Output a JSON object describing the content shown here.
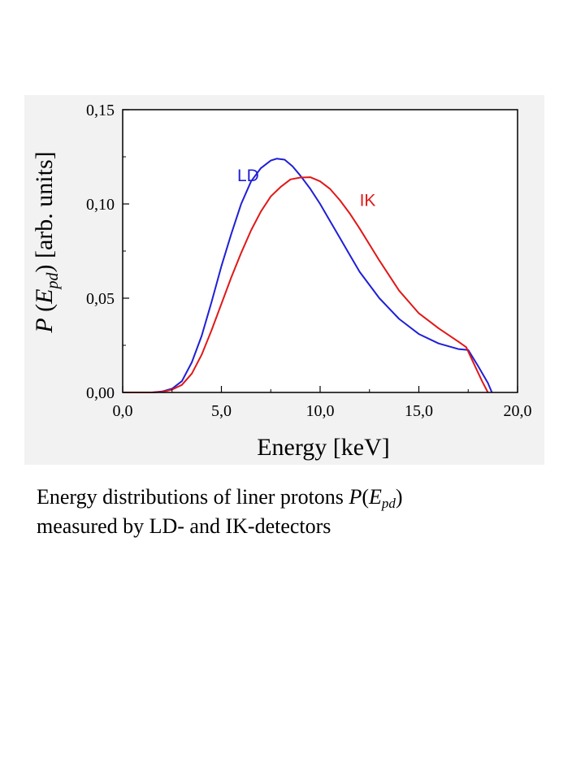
{
  "caption": {
    "line1_prefix": "Energy distributions of liner protons ",
    "symbol": "P",
    "paren_open": "(",
    "E": "E",
    "sub": "pd",
    "paren_close": ")",
    "line2": "measured by LD- and IK-detectors"
  },
  "chart_data": {
    "type": "line",
    "xlabel": "Energy [keV]",
    "ylabel": {
      "P": "P",
      "open": " (",
      "E": "E",
      "sub": "pd",
      "rest": ") [arb. units]"
    },
    "xlim": [
      0,
      20
    ],
    "ylim": [
      0,
      0.15
    ],
    "x_ticks": [
      {
        "value": 0,
        "label": "0,0"
      },
      {
        "value": 5,
        "label": "5,0"
      },
      {
        "value": 10,
        "label": "10,0"
      },
      {
        "value": 15,
        "label": "15,0"
      },
      {
        "value": 20,
        "label": "20,0"
      }
    ],
    "y_ticks": [
      {
        "value": 0,
        "label": "0,00"
      },
      {
        "value": 0.05,
        "label": "0,05"
      },
      {
        "value": 0.1,
        "label": "0,10"
      },
      {
        "value": 0.15,
        "label": "0,15"
      }
    ],
    "grid": false,
    "series": [
      {
        "name": "LD",
        "color": "#1f1fd6",
        "x": [
          0,
          1.5,
          2.0,
          2.5,
          3.0,
          3.5,
          4.0,
          4.5,
          5.0,
          5.5,
          6.0,
          6.5,
          7.0,
          7.5,
          7.8,
          8.2,
          8.6,
          9.0,
          9.5,
          10.0,
          10.5,
          11.0,
          11.5,
          12.0,
          13.0,
          14.0,
          15.0,
          16.0,
          17.0,
          17.5,
          18.0,
          18.5,
          18.7
        ],
        "y": [
          0,
          0,
          0.0005,
          0.002,
          0.006,
          0.016,
          0.03,
          0.048,
          0.067,
          0.084,
          0.1,
          0.112,
          0.119,
          0.123,
          0.124,
          0.1235,
          0.12,
          0.115,
          0.108,
          0.1,
          0.091,
          0.082,
          0.073,
          0.064,
          0.05,
          0.039,
          0.031,
          0.026,
          0.023,
          0.0225,
          0.014,
          0.005,
          0
        ]
      },
      {
        "name": "IK",
        "color": "#e01818",
        "x": [
          0,
          1.5,
          2.0,
          2.5,
          3.0,
          3.5,
          4.0,
          4.5,
          5.0,
          5.5,
          6.0,
          6.5,
          7.0,
          7.5,
          8.0,
          8.5,
          9.0,
          9.5,
          10.0,
          10.5,
          11.0,
          11.5,
          12.0,
          13.0,
          14.0,
          15.0,
          15.5,
          16.0,
          17.0,
          17.4,
          17.8,
          18.2,
          18.5
        ],
        "y": [
          0,
          0,
          0.0003,
          0.0015,
          0.004,
          0.01,
          0.02,
          0.033,
          0.047,
          0.061,
          0.074,
          0.086,
          0.096,
          0.104,
          0.109,
          0.113,
          0.114,
          0.1142,
          0.112,
          0.108,
          0.102,
          0.095,
          0.087,
          0.07,
          0.054,
          0.042,
          0.038,
          0.034,
          0.027,
          0.024,
          0.015,
          0.006,
          0
        ]
      }
    ],
    "annotations": [
      {
        "text": "LD",
        "color": "#1f1fd6",
        "x": 5.8,
        "y": 0.112
      },
      {
        "text": "IK",
        "color": "#e01818",
        "x": 12.0,
        "y": 0.099
      }
    ]
  }
}
